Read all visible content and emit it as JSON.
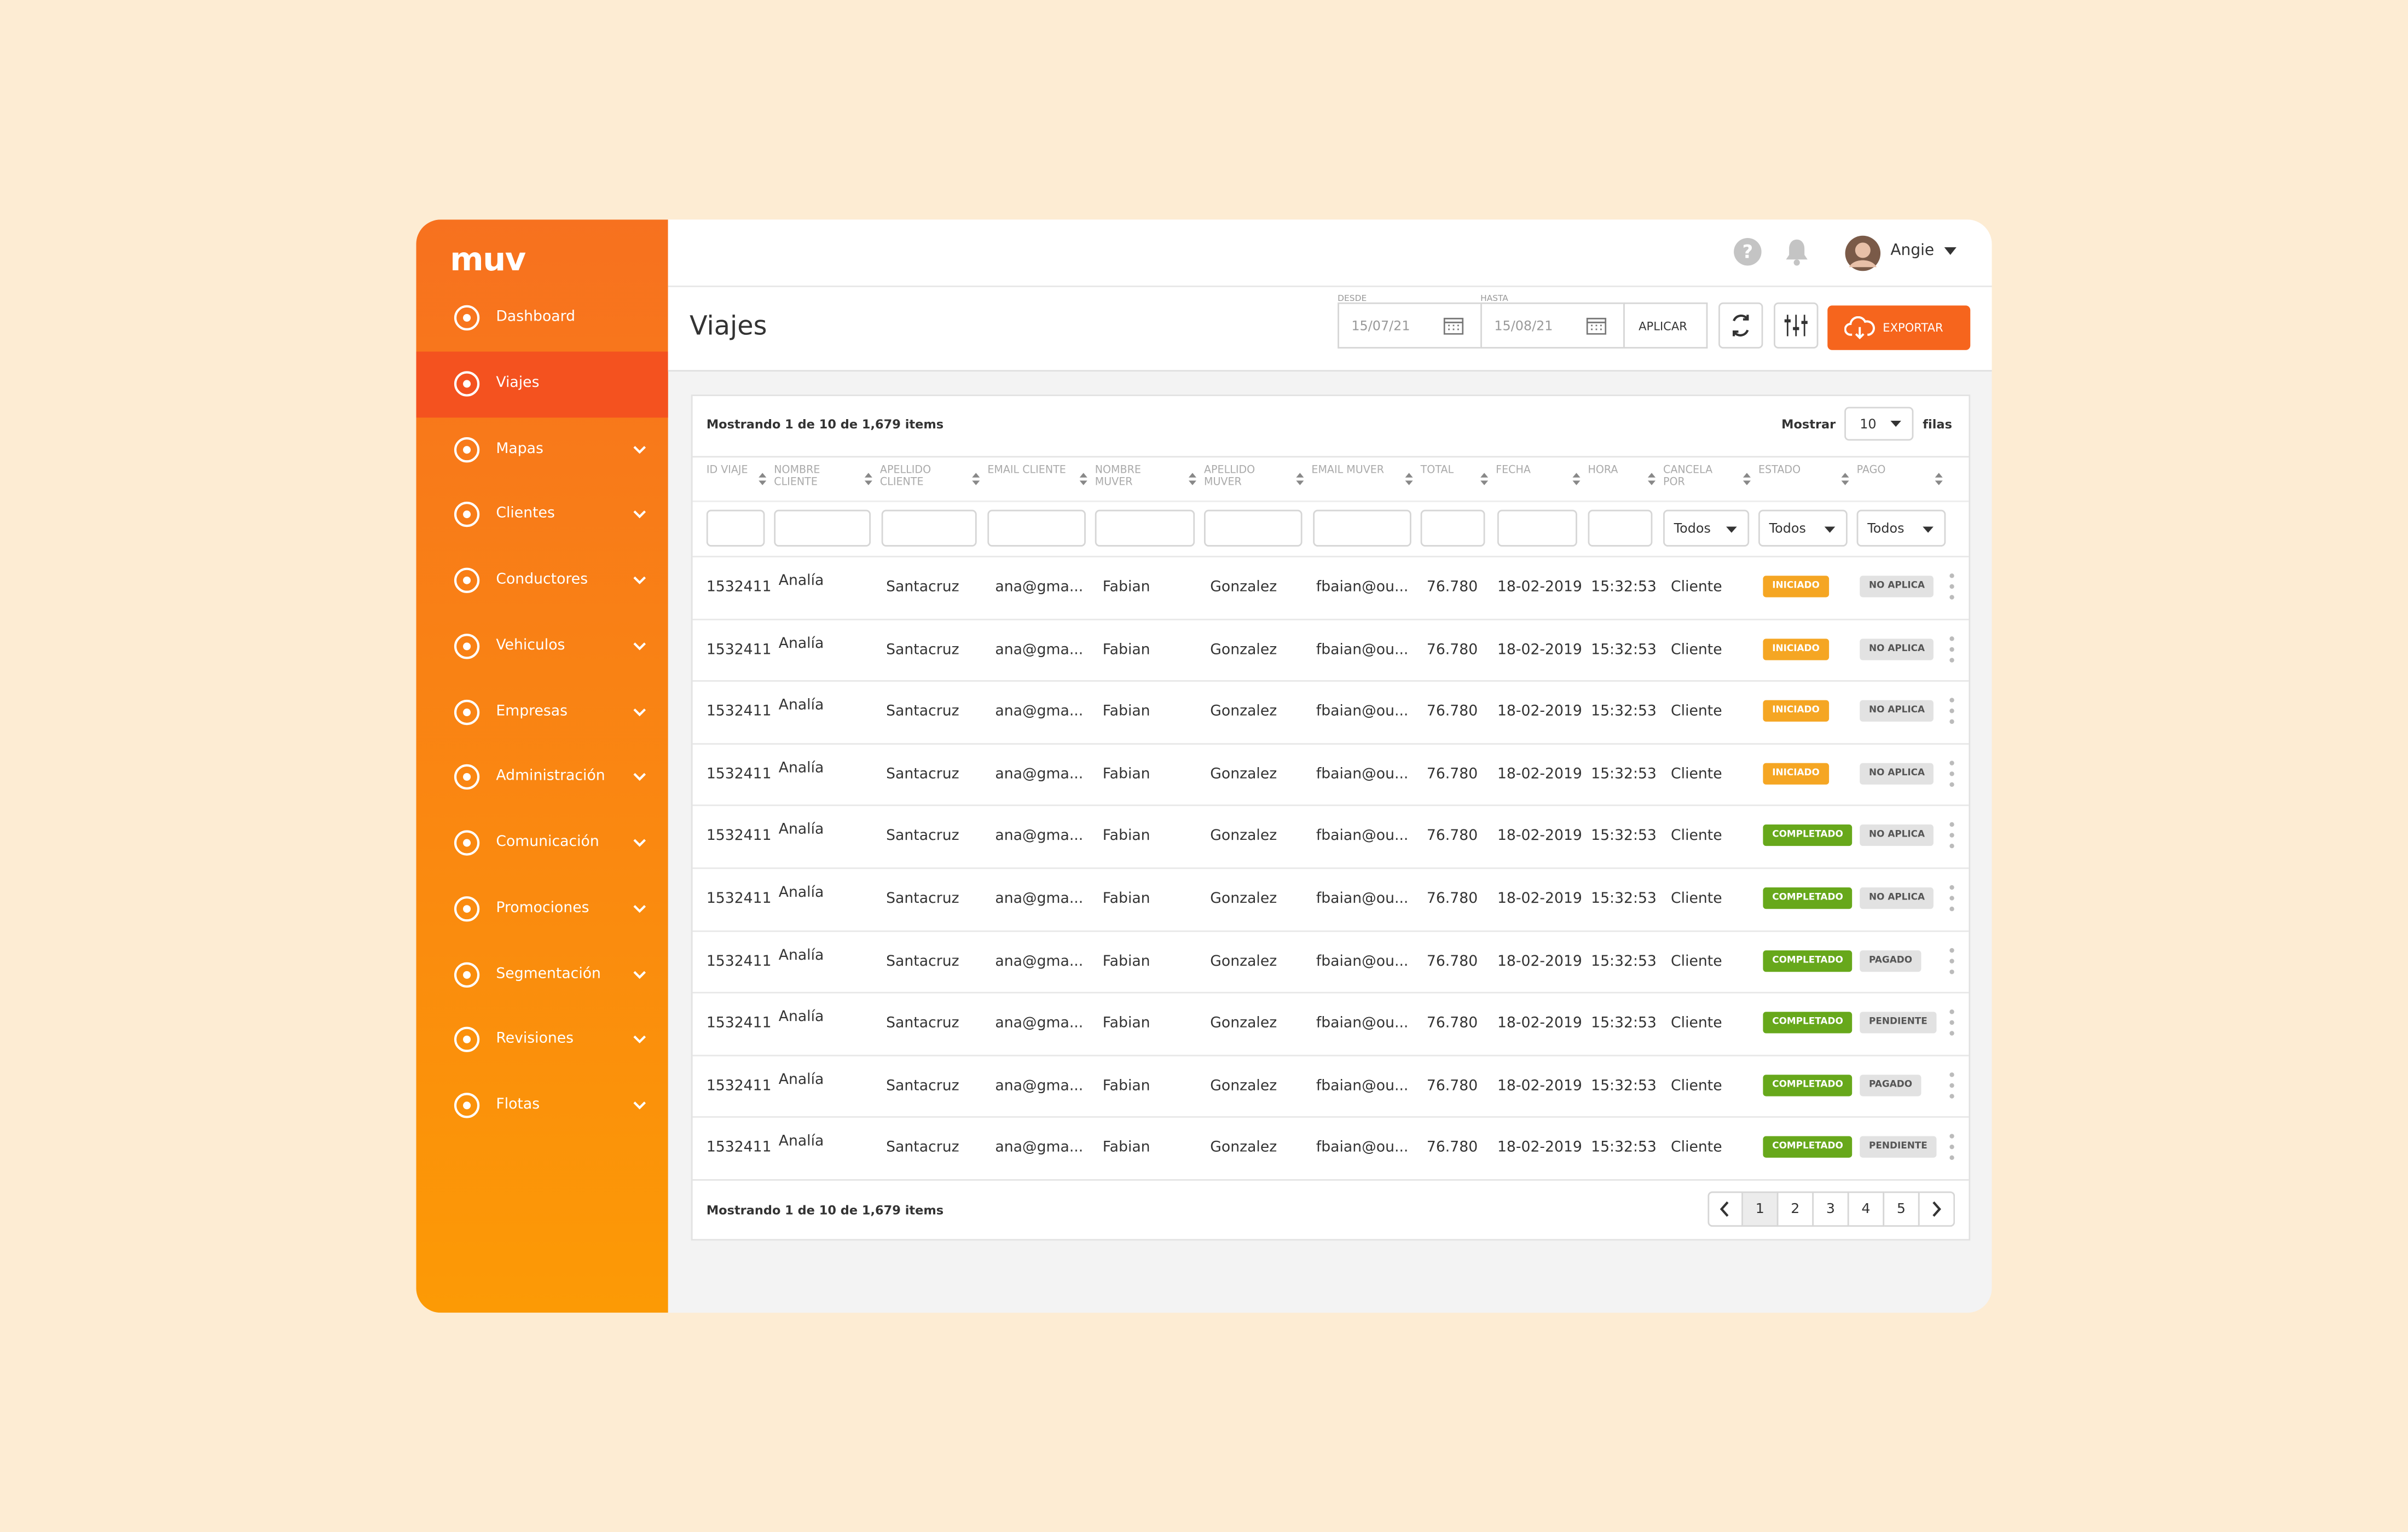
{
  "sidebar": {
    "logo": "muv",
    "nav": [
      {
        "label": "Dashboard",
        "active": false,
        "expandable": false
      },
      {
        "label": "Viajes",
        "active": true,
        "expandable": false
      },
      {
        "label": "Mapas",
        "active": false,
        "expandable": true
      },
      {
        "label": "Clientes",
        "active": false,
        "expandable": true
      },
      {
        "label": "Conductores",
        "active": false,
        "expandable": true
      },
      {
        "label": "Vehiculos",
        "active": false,
        "expandable": true
      },
      {
        "label": "Empresas",
        "active": false,
        "expandable": true
      },
      {
        "label": "Administración",
        "active": false,
        "expandable": true
      },
      {
        "label": "Comunicación",
        "active": false,
        "expandable": true
      },
      {
        "label": "Promociones",
        "active": false,
        "expandable": true
      },
      {
        "label": "Segmentación",
        "active": false,
        "expandable": true
      },
      {
        "label": "Revisiones",
        "active": false,
        "expandable": true
      },
      {
        "label": "Flotas",
        "active": false,
        "expandable": true
      }
    ]
  },
  "header": {
    "help": "?",
    "user": "Angie"
  },
  "toolbar": {
    "title": "Viajes",
    "from_label": "DESDE",
    "from": "15/07/21",
    "to_label": "HASTA",
    "to": "15/08/21",
    "apply": "APLICAR",
    "export": "EXPORTAR"
  },
  "table": {
    "summary": "Mostrando 1 de 10 de 1,679 items",
    "show_label": "Mostrar",
    "page_size": "10",
    "rows_label": "filas",
    "columns": [
      "ID VIAJE",
      "NOMBRE CLIENTE",
      "APELLIDO CLIENTE",
      "EMAIL CLIENTE",
      "NOMBRE MUVER",
      "APELLIDO MUVER",
      "EMAIL MUVER",
      "TOTAL",
      "FECHA",
      "HORA",
      "CANCELA POR",
      "ESTADO",
      "PAGO"
    ],
    "filter_options": [
      "Todos",
      "Todos",
      "Todos"
    ],
    "status_styles": {
      "INICIADO": "#f5a623",
      "COMPLETADO": "#67a81b"
    },
    "rows": [
      [
        "1532411",
        "Analía",
        "Santacruz",
        "ana@gma...",
        "Fabian",
        "Gonzalez",
        "fbaian@ou...",
        "76.780",
        "18-02-2019",
        "15:32:53",
        "Cliente",
        "INICIADO",
        "NO APLICA"
      ],
      [
        "1532411",
        "Analía",
        "Santacruz",
        "ana@gma...",
        "Fabian",
        "Gonzalez",
        "fbaian@ou...",
        "76.780",
        "18-02-2019",
        "15:32:53",
        "Cliente",
        "INICIADO",
        "NO APLICA"
      ],
      [
        "1532411",
        "Analía",
        "Santacruz",
        "ana@gma...",
        "Fabian",
        "Gonzalez",
        "fbaian@ou...",
        "76.780",
        "18-02-2019",
        "15:32:53",
        "Cliente",
        "INICIADO",
        "NO APLICA"
      ],
      [
        "1532411",
        "Analía",
        "Santacruz",
        "ana@gma...",
        "Fabian",
        "Gonzalez",
        "fbaian@ou...",
        "76.780",
        "18-02-2019",
        "15:32:53",
        "Cliente",
        "INICIADO",
        "NO APLICA"
      ],
      [
        "1532411",
        "Analía",
        "Santacruz",
        "ana@gma...",
        "Fabian",
        "Gonzalez",
        "fbaian@ou...",
        "76.780",
        "18-02-2019",
        "15:32:53",
        "Cliente",
        "COMPLETADO",
        "NO APLICA"
      ],
      [
        "1532411",
        "Analía",
        "Santacruz",
        "ana@gma...",
        "Fabian",
        "Gonzalez",
        "fbaian@ou...",
        "76.780",
        "18-02-2019",
        "15:32:53",
        "Cliente",
        "COMPLETADO",
        "NO APLICA"
      ],
      [
        "1532411",
        "Analía",
        "Santacruz",
        "ana@gma...",
        "Fabian",
        "Gonzalez",
        "fbaian@ou...",
        "76.780",
        "18-02-2019",
        "15:32:53",
        "Cliente",
        "COMPLETADO",
        "PAGADO"
      ],
      [
        "1532411",
        "Analía",
        "Santacruz",
        "ana@gma...",
        "Fabian",
        "Gonzalez",
        "fbaian@ou...",
        "76.780",
        "18-02-2019",
        "15:32:53",
        "Cliente",
        "COMPLETADO",
        "PENDIENTE"
      ],
      [
        "1532411",
        "Analía",
        "Santacruz",
        "ana@gma...",
        "Fabian",
        "Gonzalez",
        "fbaian@ou...",
        "76.780",
        "18-02-2019",
        "15:32:53",
        "Cliente",
        "COMPLETADO",
        "PAGADO"
      ],
      [
        "1532411",
        "Analía",
        "Santacruz",
        "ana@gma...",
        "Fabian",
        "Gonzalez",
        "fbaian@ou...",
        "76.780",
        "18-02-2019",
        "15:32:53",
        "Cliente",
        "COMPLETADO",
        "PENDIENTE"
      ]
    ],
    "footer": "Mostrando 1 de 10 de 1,679 items",
    "pages": [
      "1",
      "2",
      "3",
      "4",
      "5"
    ],
    "current_page": "1"
  }
}
